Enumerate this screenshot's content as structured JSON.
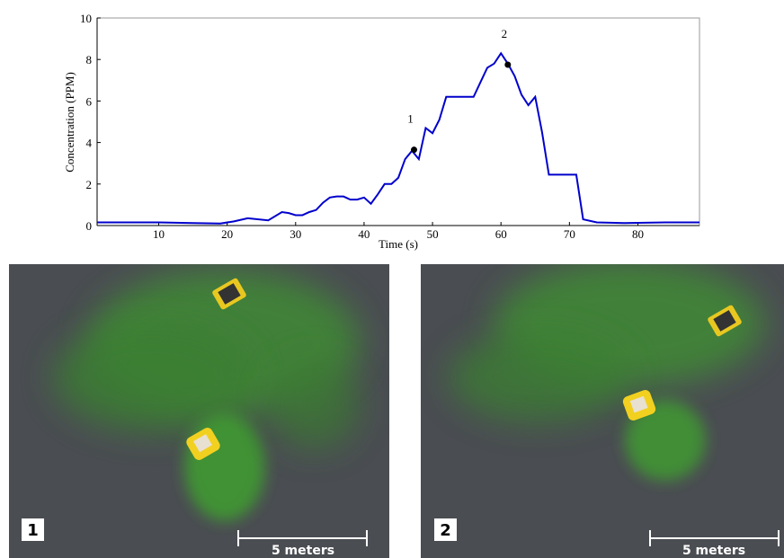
{
  "chart_data": {
    "type": "line",
    "xlabel": "Time (s)",
    "ylabel": "Concentration (PPM)",
    "x": [
      1,
      5,
      10,
      15,
      19,
      21,
      23,
      26,
      28,
      29,
      30,
      31,
      32,
      33,
      34,
      35,
      36,
      37,
      38,
      39,
      40,
      41,
      42,
      43,
      44,
      45,
      46,
      47,
      48,
      49,
      50,
      51,
      52,
      56,
      57,
      58,
      59,
      60,
      61,
      62,
      63,
      64,
      65,
      66,
      67,
      71,
      72,
      74,
      78,
      84,
      89
    ],
    "series": [
      {
        "color": "#0000cc",
        "values": [
          0.15,
          0.15,
          0.15,
          0.12,
          0.1,
          0.2,
          0.35,
          0.25,
          0.65,
          0.6,
          0.5,
          0.5,
          0.65,
          0.75,
          1.1,
          1.35,
          1.4,
          1.4,
          1.25,
          1.25,
          1.35,
          1.05,
          1.5,
          2.0,
          2.0,
          2.3,
          3.2,
          3.6,
          3.2,
          4.7,
          4.45,
          5.1,
          6.2,
          6.2,
          6.9,
          7.6,
          7.8,
          8.3,
          7.8,
          7.2,
          6.3,
          5.8,
          6.2,
          4.5,
          2.45,
          2.45,
          0.3,
          0.15,
          0.12,
          0.15,
          0.15
        ]
      }
    ],
    "markers": [
      {
        "x": 47.3,
        "y": 3.65,
        "label": "1"
      },
      {
        "x": 61,
        "y": 7.75,
        "label": "2"
      }
    ],
    "xlim": [
      1,
      89
    ],
    "xticks": [
      10,
      20,
      30,
      40,
      50,
      60,
      70,
      80
    ],
    "ylim": [
      0,
      10
    ],
    "yticks": [
      0,
      2,
      4,
      6,
      8,
      10
    ]
  },
  "photos": [
    {
      "label": "1",
      "scale": "5 meters"
    },
    {
      "label": "2",
      "scale": "5 meters"
    }
  ]
}
